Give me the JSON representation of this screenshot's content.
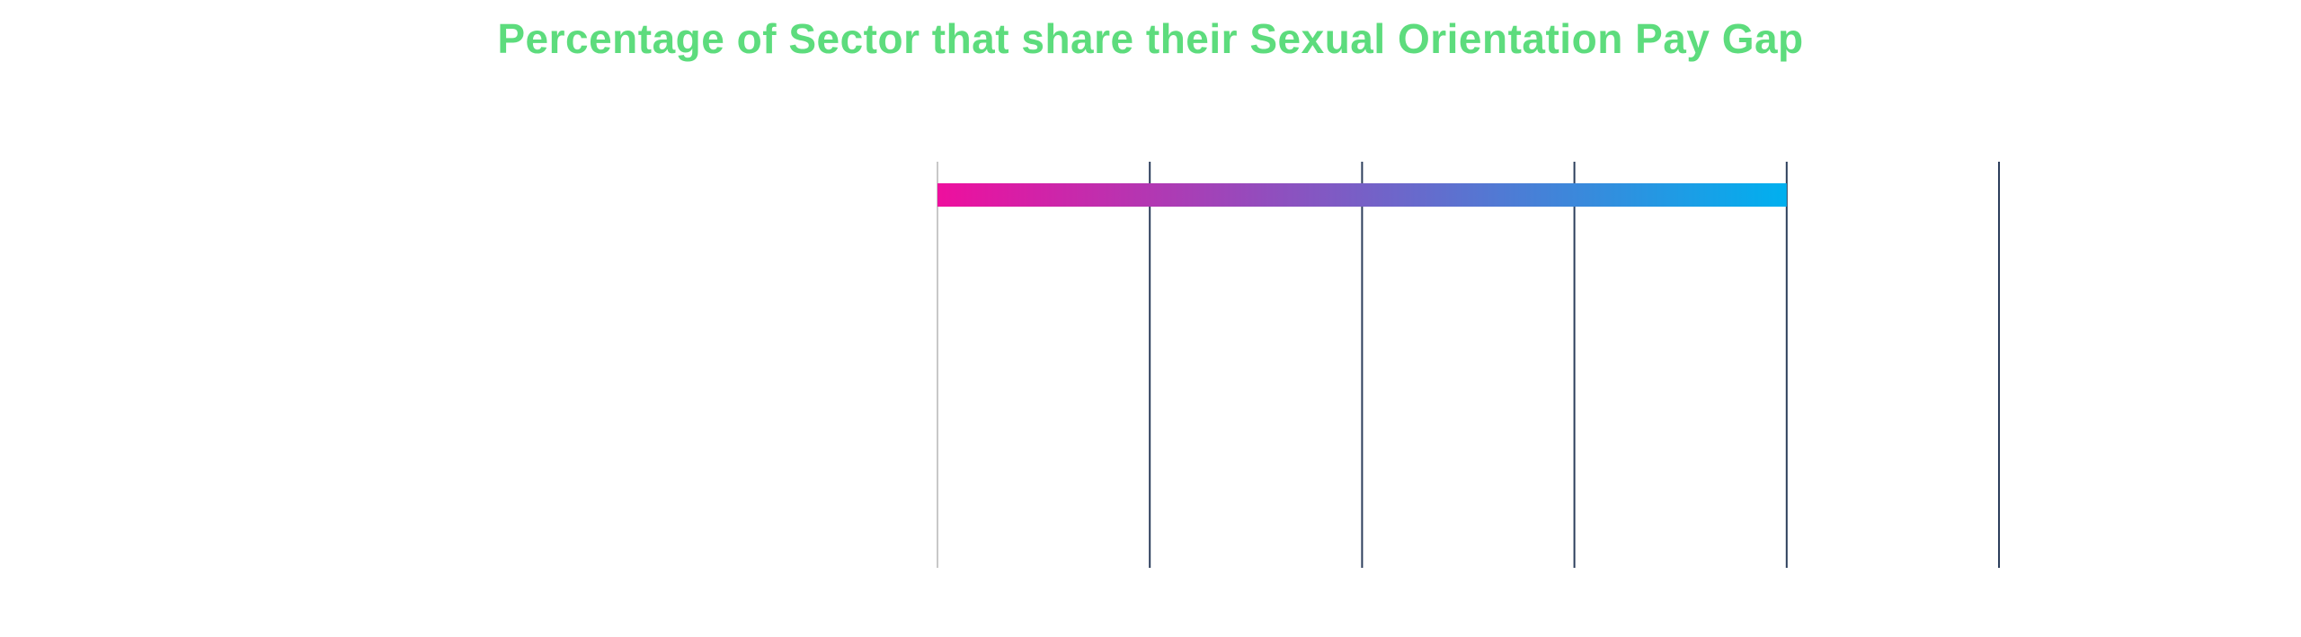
{
  "chart_data": {
    "type": "bar",
    "orientation": "horizontal",
    "title": "Percentage of Sector that share their Sexual Orientation Pay Gap",
    "xlabel": "",
    "ylabel": "",
    "categories": [
      ""
    ],
    "values": [
      80
    ],
    "xlim": [
      0,
      100
    ],
    "x_gridlines": [
      0,
      20,
      40,
      60,
      80,
      100
    ],
    "tick_labels_visible": false,
    "grid": true,
    "legend": "none",
    "bar_gradient": [
      "#ee0f9e",
      "#00b0ef"
    ]
  },
  "colors": {
    "title": "#5ddc7d",
    "gridline": "#2c3e5c",
    "baseline": "#c8c8c8",
    "background": "#ffffff"
  }
}
